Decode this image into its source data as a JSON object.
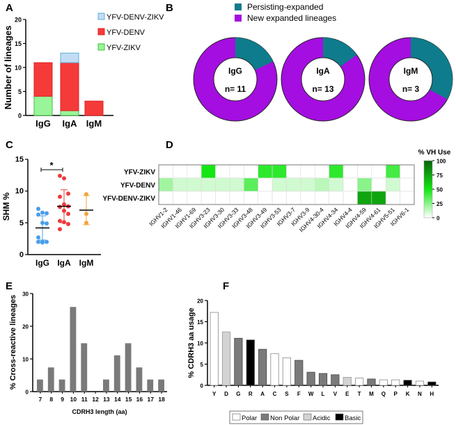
{
  "chart_data": [
    {
      "panel": "A",
      "type": "bar",
      "stacked": true,
      "categories": [
        "IgG",
        "IgA",
        "IgM"
      ],
      "ylabel": "Number of lineages",
      "ylim": [
        0,
        20
      ],
      "yticks": [
        0,
        5,
        10,
        15,
        20
      ],
      "series": [
        {
          "name": "YFV-ZIKV",
          "color": "#99f599",
          "values": [
            4,
            1,
            0
          ]
        },
        {
          "name": "YFV-DENV",
          "color": "#f53a3a",
          "values": [
            7,
            10,
            3
          ]
        },
        {
          "name": "YFV-DENV-ZIKV",
          "color": "#c3dcf5",
          "values": [
            0,
            2,
            0
          ]
        }
      ],
      "legend": [
        "YFV-DENV-ZIKV",
        "YFV-DENV",
        "YFV-ZIKV"
      ]
    },
    {
      "panel": "B",
      "type": "pie",
      "donut": true,
      "legend": [
        {
          "name": "Persisting-expanded",
          "color": "#0e7c8c"
        },
        {
          "name": "New expanded lineages",
          "color": "#a40ee0"
        }
      ],
      "charts": [
        {
          "label": "IgG",
          "n": "n= 11",
          "persisting_fraction": 0.18
        },
        {
          "label": "IgA",
          "n": "n= 13",
          "persisting_fraction": 0.15
        },
        {
          "label": "IgM",
          "n": "n= 3",
          "persisting_fraction": 0.33
        }
      ]
    },
    {
      "panel": "C",
      "type": "scatter",
      "ylabel": "SHM %",
      "ylim": [
        0,
        15
      ],
      "yticks": [
        0,
        5,
        10,
        15
      ],
      "categories": [
        "IgG",
        "IgA",
        "IgM"
      ],
      "significance": "*",
      "groups": [
        {
          "name": "IgG",
          "color": "#4a9ee8",
          "values": [
            7.2,
            6.6,
            6.5,
            6.3,
            5.0,
            4.9,
            2.7,
            2.0,
            2.0,
            2.0,
            1.9
          ],
          "mean": 4.2,
          "sd": 1.9
        },
        {
          "name": "IgA",
          "color": "#ee3b3b",
          "values": [
            12.4,
            12.0,
            9.6,
            9.1,
            7.9,
            7.6,
            7.5,
            6.9,
            6.4,
            5.3,
            5.1,
            4.8,
            4.0
          ],
          "mean": 7.6,
          "sd": 2.6
        },
        {
          "name": "IgM",
          "color": "#f4a43a",
          "values": [
            9.5,
            6.4,
            5.0
          ],
          "mean": 7.0,
          "sd": 2.3
        }
      ]
    },
    {
      "panel": "D",
      "type": "heatmap",
      "colorbar_title": "% VH Use",
      "colorbar_ticks": [
        0,
        25,
        50,
        75,
        100
      ],
      "rows": [
        "YFV-ZIKV",
        "YFV-DENV",
        "YFV-DENV-ZIKV"
      ],
      "columns": [
        "IGHV1-2",
        "IGHV1-46",
        "IGHV1-69",
        "IGHV3-23",
        "IGHV3-30",
        "IGHV3-33",
        "IGHV3-48",
        "IGHV3-49",
        "IGHV3-53",
        "IGHV3-7",
        "IGHV3-9",
        "IGHV4-30-4",
        "IGHV4-34",
        "IGHV4-4",
        "IGHV4-59",
        "IGHV4-61",
        "IGHV5-51",
        "IGHV6-1"
      ],
      "values": [
        [
          0,
          0,
          0,
          50,
          0,
          0,
          0,
          45,
          45,
          0,
          0,
          0,
          45,
          0,
          0,
          0,
          40,
          0
        ],
        [
          20,
          10,
          10,
          10,
          10,
          10,
          35,
          0,
          10,
          10,
          10,
          15,
          10,
          0,
          25,
          0,
          10,
          0
        ],
        [
          0,
          0,
          0,
          0,
          0,
          0,
          0,
          0,
          0,
          0,
          0,
          0,
          0,
          0,
          75,
          75,
          0,
          0
        ]
      ]
    },
    {
      "panel": "E",
      "type": "bar",
      "xlabel": "CDRH3 length (aa)",
      "ylabel": "% Cross-reactive lineages",
      "ylim": [
        0,
        30
      ],
      "yticks": [
        0,
        10,
        20,
        30
      ],
      "categories": [
        "7",
        "8",
        "9",
        "10",
        "11",
        "12",
        "13",
        "14",
        "15",
        "16",
        "17",
        "18"
      ],
      "values": [
        3.7,
        7.4,
        3.7,
        25.9,
        14.8,
        0,
        3.7,
        11.1,
        14.8,
        7.4,
        3.7,
        3.7
      ]
    },
    {
      "panel": "F",
      "type": "bar",
      "ylabel": "% CDRH3 aa usage",
      "ylim": [
        0,
        20
      ],
      "yticks": [
        0,
        5,
        10,
        15,
        20
      ],
      "categories": [
        "Y",
        "D",
        "G",
        "R",
        "A",
        "C",
        "S",
        "F",
        "W",
        "L",
        "V",
        "E",
        "T",
        "M",
        "Q",
        "P",
        "K",
        "N",
        "H"
      ],
      "values": [
        17.2,
        12.6,
        11.1,
        10.7,
        8.5,
        7.5,
        6.5,
        5.9,
        3.1,
        2.8,
        2.5,
        1.9,
        1.7,
        1.5,
        1.3,
        1.3,
        1.2,
        1.0,
        0.8
      ],
      "classes": [
        "Polar",
        "Acidic",
        "Non Polar",
        "Basic",
        "Non Polar",
        "Polar",
        "Polar",
        "Non Polar",
        "Non Polar",
        "Non Polar",
        "Non Polar",
        "Acidic",
        "Polar",
        "Non Polar",
        "Polar",
        "Polar",
        "Basic",
        "Polar",
        "Basic"
      ],
      "legend": [
        {
          "name": "Polar",
          "color": "#ffffff"
        },
        {
          "name": "Non Polar",
          "color": "#7a7a7a"
        },
        {
          "name": "Acidic",
          "color": "#d3d3d3"
        },
        {
          "name": "Basic",
          "color": "#000000"
        }
      ]
    }
  ],
  "panel_labels": [
    "A",
    "B",
    "C",
    "D",
    "E",
    "F"
  ]
}
